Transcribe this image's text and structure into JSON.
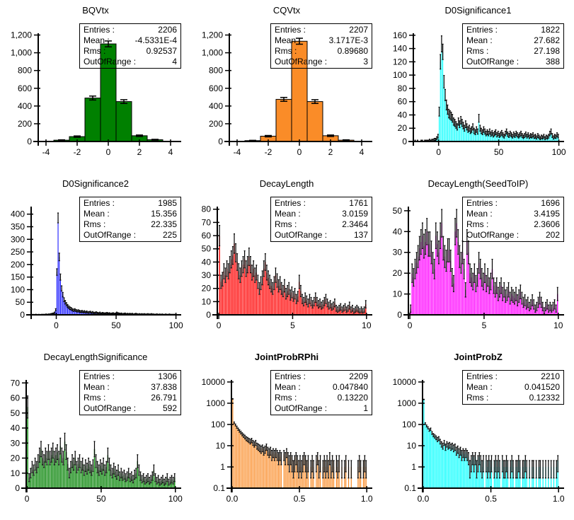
{
  "chart_data": [
    {
      "type": "bar",
      "name": "bqvtx",
      "title": "BQVtx",
      "title_bold": false,
      "color": "#008000",
      "x": {
        "min": -4.5,
        "max": 4.5,
        "tick_values": [
          -4,
          -2,
          0,
          2,
          4
        ],
        "tick_labels": [
          "-4",
          "-2",
          "0",
          "2",
          "4"
        ]
      },
      "y": {
        "scale": "linear",
        "min": 0,
        "axis_max": 1220,
        "tick_values": [
          0,
          200,
          400,
          600,
          800,
          1000,
          1200
        ],
        "tick_labels": [
          "0",
          "200",
          "400",
          "600",
          "800",
          "1,000",
          "1,200"
        ]
      },
      "bins": {
        "start": -4.5,
        "width": 1
      },
      "values": [
        0,
        15,
        55,
        490,
        1100,
        450,
        65,
        20,
        0
      ],
      "stats": [
        {
          "label": "Entries :",
          "value": "2206"
        },
        {
          "label": "Mean :",
          "value": "-4.5331E-4"
        },
        {
          "label": "Rms :",
          "value": "0.92537"
        },
        {
          "label": "OutOfRange :",
          "value": "4"
        }
      ]
    },
    {
      "type": "bar",
      "name": "cqvtx",
      "title": "CQVtx",
      "title_bold": false,
      "color": "#FA8C28",
      "x": {
        "min": -4.5,
        "max": 4.5,
        "tick_values": [
          -4,
          -2,
          0,
          2,
          4
        ],
        "tick_labels": [
          "-4",
          "-2",
          "0",
          "2",
          "4"
        ]
      },
      "y": {
        "scale": "linear",
        "min": 0,
        "axis_max": 1220,
        "tick_values": [
          0,
          200,
          400,
          600,
          800,
          1000,
          1200
        ],
        "tick_labels": [
          "0",
          "200",
          "400",
          "600",
          "800",
          "1,000",
          "1,200"
        ]
      },
      "bins": {
        "start": -4.5,
        "width": 1
      },
      "values": [
        0,
        10,
        60,
        475,
        1130,
        450,
        65,
        15,
        0
      ],
      "stats": [
        {
          "label": "Entries :",
          "value": "2207"
        },
        {
          "label": "Mean :",
          "value": "3.1717E-3"
        },
        {
          "label": "Rms :",
          "value": "0.89680"
        },
        {
          "label": "OutOfRange :",
          "value": "3"
        }
      ]
    },
    {
      "type": "bar",
      "name": "d0significance1",
      "title": "D0Significance1",
      "title_bold": false,
      "color": "#00FFFF",
      "x": {
        "min": -21,
        "max": 102,
        "tick_values": [
          0,
          50,
          100
        ],
        "tick_labels": [
          "0",
          "50",
          "100"
        ]
      },
      "y": {
        "scale": "linear",
        "min": 0,
        "axis_max": 163,
        "tick_values": [
          0,
          20,
          40,
          60,
          80,
          100,
          120,
          140,
          160
        ],
        "tick_labels": [
          "0",
          "20",
          "40",
          "60",
          "80",
          "100",
          "120",
          "140",
          "160"
        ]
      },
      "bins": {
        "start": -20,
        "width": 1
      },
      "values": [
        1,
        0,
        1,
        0,
        0,
        1,
        1,
        0,
        1,
        1,
        1,
        1,
        2,
        1,
        2,
        2,
        3,
        3,
        5,
        8,
        45,
        120,
        147,
        135,
        90,
        70,
        55,
        48,
        42,
        40,
        38,
        35,
        30,
        28,
        25,
        22,
        30,
        26,
        32,
        28,
        24,
        20,
        26,
        22,
        18,
        20,
        16,
        18,
        22,
        16,
        14,
        18,
        15,
        35,
        20,
        16,
        14,
        18,
        15,
        12,
        14,
        12,
        15,
        11,
        13,
        10,
        12,
        14,
        10,
        12,
        9,
        11,
        13,
        10,
        8,
        12,
        15,
        11,
        9,
        12,
        10,
        8,
        11,
        9,
        12,
        10,
        8,
        10,
        12,
        9,
        7,
        9,
        11,
        8,
        10,
        7,
        9,
        8,
        10,
        7,
        8,
        6,
        9,
        7,
        5,
        7,
        6,
        8,
        5,
        7,
        6,
        8,
        12,
        15,
        9,
        6,
        8,
        7,
        10,
        8
      ],
      "stats": [
        {
          "label": "Entries :",
          "value": "1822"
        },
        {
          "label": "Mean :",
          "value": "27.682"
        },
        {
          "label": "Rms :",
          "value": "27.198"
        },
        {
          "label": "OutOfRange :",
          "value": "388"
        }
      ]
    },
    {
      "type": "bar",
      "name": "d0significance2",
      "title": "D0Significance2",
      "title_bold": false,
      "color": "#0000FF",
      "x": {
        "min": -21,
        "max": 102,
        "tick_values": [
          0,
          50,
          100
        ],
        "tick_labels": [
          "0",
          "50",
          "100"
        ]
      },
      "y": {
        "scale": "linear",
        "min": 0,
        "axis_max": 430,
        "tick_values": [
          0,
          50,
          100,
          150,
          200,
          250,
          300,
          350,
          400
        ],
        "tick_labels": [
          "0",
          "50",
          "100",
          "150",
          "200",
          "250",
          "300",
          "350",
          "400"
        ]
      },
      "bins": {
        "start": -20,
        "width": 1
      },
      "values": [
        1,
        0,
        1,
        1,
        0,
        1,
        0,
        1,
        1,
        1,
        1,
        2,
        1,
        2,
        2,
        3,
        4,
        5,
        8,
        20,
        170,
        385,
        230,
        150,
        105,
        80,
        60,
        50,
        42,
        35,
        30,
        26,
        24,
        20,
        18,
        20,
        17,
        15,
        16,
        14,
        12,
        14,
        11,
        13,
        10,
        12,
        9,
        10,
        11,
        8,
        10,
        7,
        8,
        9,
        7,
        6,
        8,
        5,
        7,
        6,
        5,
        6,
        7,
        5,
        6,
        4,
        5,
        6,
        4,
        5,
        8,
        6,
        5,
        4,
        5,
        3,
        4,
        5,
        3,
        4,
        3,
        4,
        3,
        4,
        2,
        3,
        4,
        3,
        2,
        3,
        2,
        3,
        2,
        3,
        2,
        2,
        3,
        2,
        2,
        3,
        2,
        2,
        1,
        2,
        2,
        1,
        2,
        1,
        2,
        1,
        1,
        2,
        1,
        1,
        2,
        1,
        1,
        1,
        1,
        1
      ],
      "stats": [
        {
          "label": "Entries :",
          "value": "1985"
        },
        {
          "label": "Mean :",
          "value": "15.356"
        },
        {
          "label": "Rms :",
          "value": "22.335"
        },
        {
          "label": "OutOfRange :",
          "value": "225"
        }
      ]
    },
    {
      "type": "bar",
      "name": "decaylength",
      "title": "DecayLength",
      "title_bold": false,
      "color": "#FF0000",
      "x": {
        "min": -0.1,
        "max": 10.2,
        "tick_values": [
          0,
          5,
          10
        ],
        "tick_labels": [
          "0",
          "5",
          "10"
        ]
      },
      "y": {
        "scale": "linear",
        "min": 0,
        "axis_max": 82,
        "tick_values": [
          0,
          10,
          20,
          30,
          40,
          50,
          60,
          70,
          80
        ],
        "tick_labels": [
          "0",
          "10",
          "20",
          "30",
          "40",
          "50",
          "60",
          "70",
          "80"
        ]
      },
      "bins": {
        "start": 0,
        "width": 0.1
      },
      "values": [
        60,
        25,
        27,
        33,
        30,
        35,
        33,
        38,
        42,
        45,
        54,
        47,
        40,
        33,
        30,
        35,
        38,
        42,
        35,
        38,
        44,
        38,
        32,
        35,
        30,
        32,
        25,
        20,
        24,
        28,
        35,
        40,
        32,
        28,
        25,
        22,
        20,
        24,
        30,
        26,
        22,
        24,
        20,
        18,
        22,
        16,
        18,
        20,
        15,
        17,
        14,
        16,
        12,
        14,
        25,
        18,
        12,
        10,
        13,
        11,
        9,
        12,
        10,
        8,
        10,
        13,
        10,
        8,
        9,
        7,
        8,
        10,
        12,
        9,
        7,
        8,
        6,
        7,
        9,
        5,
        4,
        5,
        6,
        4,
        5,
        6,
        4,
        5,
        7,
        4,
        5,
        3,
        4,
        5,
        4,
        3,
        4,
        3,
        4,
        8
      ],
      "stats": [
        {
          "label": "Entries :",
          "value": "1761"
        },
        {
          "label": "Mean :",
          "value": "3.0159"
        },
        {
          "label": "Rms :",
          "value": "2.3464"
        },
        {
          "label": "OutOfRange :",
          "value": "137"
        }
      ]
    },
    {
      "type": "bar",
      "name": "decaylength-seedtoip",
      "title": "DecayLength(SeedToIP)",
      "title_bold": false,
      "color": "#FF00FF",
      "x": {
        "min": -0.1,
        "max": 10.2,
        "tick_values": [
          0,
          5,
          10
        ],
        "tick_labels": [
          "0",
          "5",
          "10"
        ]
      },
      "y": {
        "scale": "linear",
        "min": 0,
        "axis_max": 52,
        "tick_values": [
          0,
          10,
          20,
          30,
          40,
          50
        ],
        "tick_labels": [
          "0",
          "10",
          "20",
          "30",
          "40",
          "50"
        ]
      },
      "bins": {
        "start": 0,
        "width": 0.1
      },
      "values": [
        3,
        20,
        18,
        22,
        25,
        28,
        32,
        35,
        38,
        33,
        35,
        40,
        34,
        34,
        30,
        25,
        22,
        38,
        34,
        30,
        38,
        44,
        32,
        28,
        26,
        31,
        31,
        26,
        18,
        15,
        40,
        44,
        35,
        28,
        25,
        30,
        22,
        12,
        35,
        30,
        20,
        18,
        16,
        20,
        15,
        18,
        25,
        22,
        18,
        16,
        20,
        15,
        18,
        14,
        16,
        22,
        14,
        12,
        14,
        10,
        12,
        14,
        10,
        12,
        9,
        10,
        12,
        8,
        10,
        9,
        8,
        10,
        7,
        9,
        11,
        8,
        6,
        7,
        5,
        6,
        4,
        5,
        7,
        5,
        3,
        4,
        6,
        8,
        6,
        4,
        2,
        4,
        5,
        3,
        4,
        3,
        4,
        5,
        3,
        10
      ],
      "stats": [
        {
          "label": "Entries :",
          "value": "1696"
        },
        {
          "label": "Mean :",
          "value": "3.4195"
        },
        {
          "label": "Rms :",
          "value": "2.3606"
        },
        {
          "label": "OutOfRange :",
          "value": "202"
        }
      ]
    },
    {
      "type": "bar",
      "name": "decaylengthsignificance",
      "title": "DecayLengthSignificance",
      "title_bold": false,
      "color": "#008000",
      "x": {
        "min": -0.5,
        "max": 102,
        "tick_values": [
          0,
          50,
          100
        ],
        "tick_labels": [
          "0",
          "50",
          "100"
        ]
      },
      "y": {
        "scale": "linear",
        "min": 0,
        "axis_max": 72,
        "tick_values": [
          0,
          10,
          20,
          30,
          40,
          50,
          60,
          70
        ],
        "tick_labels": [
          "0",
          "10",
          "20",
          "30",
          "40",
          "50",
          "60",
          "70"
        ]
      },
      "bins": {
        "start": 0,
        "width": 1
      },
      "values": [
        54,
        7,
        10,
        14,
        12,
        16,
        14,
        18,
        22,
        26,
        20,
        18,
        22,
        20,
        24,
        20,
        22,
        25,
        20,
        22,
        24,
        20,
        28,
        22,
        20,
        31,
        24,
        16,
        10,
        14,
        18,
        16,
        20,
        14,
        16,
        18,
        14,
        16,
        12,
        15,
        13,
        16,
        14,
        12,
        15,
        26,
        18,
        14,
        12,
        15,
        13,
        16,
        12,
        14,
        22,
        16,
        12,
        10,
        13,
        11,
        9,
        12,
        8,
        10,
        8,
        9,
        7,
        8,
        10,
        7,
        8,
        6,
        9,
        10,
        18,
        12,
        8,
        6,
        7,
        5,
        6,
        7,
        5,
        6,
        8,
        12,
        7,
        5,
        6,
        4,
        5,
        6,
        4,
        5,
        7,
        4,
        5,
        6,
        5,
        7
      ],
      "stats": [
        {
          "label": "Entries :",
          "value": "1306"
        },
        {
          "label": "Mean :",
          "value": "37.838"
        },
        {
          "label": "Rms :",
          "value": "26.791"
        },
        {
          "label": "OutOfRange :",
          "value": "592"
        }
      ]
    },
    {
      "type": "bar",
      "name": "jointprobrphi",
      "title": "JointProbRPhi",
      "title_bold": true,
      "color": "#FA8C28",
      "x": {
        "min": -0.005,
        "max": 1.02,
        "tick_values": [
          0,
          0.5,
          1.0
        ],
        "tick_labels": [
          "0.0",
          "0.5",
          "1.0"
        ]
      },
      "y": {
        "scale": "log",
        "min": 0.1,
        "axis_max": 12500,
        "tick_values": [
          0.1,
          1,
          10,
          100,
          1000,
          10000
        ],
        "tick_labels": [
          "0.1",
          "1",
          "10",
          "100",
          "1000",
          "10000"
        ]
      },
      "bins": {
        "start": 0,
        "width": 0.01
      },
      "values": [
        1600,
        120,
        95,
        75,
        60,
        50,
        42,
        35,
        30,
        26,
        22,
        20,
        18,
        16,
        18,
        14,
        12,
        14,
        10,
        9,
        8,
        7,
        8,
        6,
        7,
        9,
        6,
        5,
        6,
        4,
        5,
        4,
        5,
        4,
        3,
        4,
        3,
        0,
        4,
        3,
        5,
        3,
        2,
        3,
        2,
        1,
        2,
        3,
        2,
        1,
        2,
        1,
        2,
        3,
        2,
        1,
        2,
        0,
        1,
        2,
        1,
        0,
        2,
        3,
        1,
        2,
        0,
        1,
        2,
        1,
        2,
        1,
        3,
        1,
        2,
        1,
        0,
        2,
        1,
        2,
        0,
        1,
        0,
        1,
        2,
        0,
        1,
        0,
        1,
        0,
        0,
        0,
        0,
        1,
        2,
        1,
        0,
        1,
        2,
        1
      ],
      "stats": [
        {
          "label": "Entries :",
          "value": "2209"
        },
        {
          "label": "Mean :",
          "value": "0.047840"
        },
        {
          "label": "Rms :",
          "value": "0.13220"
        },
        {
          "label": "OutOfRange :",
          "value": "1"
        }
      ]
    },
    {
      "type": "bar",
      "name": "jointprobz",
      "title": "JointProbZ",
      "title_bold": true,
      "color": "#00FFFF",
      "x": {
        "min": -0.005,
        "max": 1.02,
        "tick_values": [
          0,
          0.5,
          1.0
        ],
        "tick_labels": [
          "0.0",
          "0.5",
          "1.0"
        ]
      },
      "y": {
        "scale": "log",
        "min": 0.1,
        "axis_max": 12500,
        "tick_values": [
          0.1,
          1,
          10,
          100,
          1000,
          10000
        ],
        "tick_labels": [
          "0.1",
          "1",
          "10",
          "100",
          "1000",
          "10000"
        ]
      },
      "bins": {
        "start": 0,
        "width": 0.01
      },
      "values": [
        1500,
        110,
        85,
        70,
        55,
        60,
        40,
        32,
        28,
        24,
        20,
        22,
        16,
        12,
        10,
        14,
        9,
        12,
        10,
        11,
        9,
        10,
        8,
        9,
        6,
        7,
        5,
        6,
        4,
        5,
        4,
        5,
        4,
        3,
        1,
        2,
        3,
        2,
        3,
        1,
        2,
        3,
        2,
        1,
        2,
        0,
        2,
        1,
        2,
        1,
        2,
        0,
        1,
        2,
        1,
        2,
        1,
        0,
        2,
        1,
        1,
        2,
        1,
        0,
        1,
        2,
        1,
        0,
        1,
        1,
        2,
        1,
        0,
        1,
        1,
        2,
        1,
        0,
        1,
        0,
        1,
        1,
        0,
        1,
        0,
        1,
        1,
        0,
        1,
        0,
        1,
        0,
        1,
        0,
        1,
        0,
        1,
        0,
        1,
        2
      ],
      "stats": [
        {
          "label": "Entries :",
          "value": "2210"
        },
        {
          "label": "Mean :",
          "value": "0.041520"
        },
        {
          "label": "Rms :",
          "value": "0.12332"
        }
      ]
    }
  ]
}
